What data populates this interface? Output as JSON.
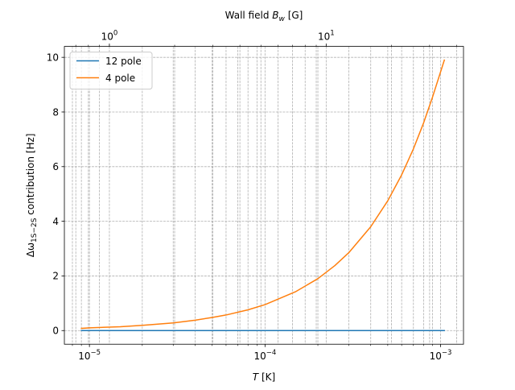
{
  "chart_data": {
    "type": "line",
    "xlabel": "T [K]",
    "ylabel": "Δω1S−2S contribution [Hz]",
    "top_xlabel": "Wall field B_w [G]",
    "xscale": "log",
    "xlim": [
      7.2e-06,
      0.00135
    ],
    "ylim": [
      -0.5,
      10.4
    ],
    "top_xlim": [
      0.62,
      43
    ],
    "grid": true,
    "legend_position": "upper-left",
    "x_ticks": [
      {
        "value": 1e-05,
        "base": "10",
        "exp": "−5"
      },
      {
        "value": 0.0001,
        "base": "10",
        "exp": "−4"
      },
      {
        "value": 0.001,
        "base": "10",
        "exp": "−3"
      }
    ],
    "top_ticks": [
      {
        "value": 1,
        "base": "10",
        "exp": "0"
      },
      {
        "value": 10,
        "base": "10",
        "exp": "1"
      }
    ],
    "y_ticks": [
      "0",
      "2",
      "4",
      "6",
      "8",
      "10"
    ],
    "series": [
      {
        "name": "12 pole",
        "color": "#1f77b4",
        "x": [
          9e-06,
          1.5e-05,
          3e-05,
          6e-05,
          0.0001,
          0.0002,
          0.0004,
          0.0006,
          0.0008,
          0.00105
        ],
        "y": [
          0.0,
          0.0,
          0.0,
          0.0,
          0.0,
          0.0,
          0.0,
          0.0,
          0.0,
          0.0
        ]
      },
      {
        "name": "4 pole",
        "color": "#ff7f0e",
        "x": [
          9e-06,
          1e-05,
          1.5e-05,
          2e-05,
          3e-05,
          4e-05,
          5e-05,
          6e-05,
          8e-05,
          0.0001,
          0.00015,
          0.0002,
          0.00025,
          0.0003,
          0.0004,
          0.0005,
          0.0006,
          0.0007,
          0.0008,
          0.0009,
          0.00105
        ],
        "y": [
          0.08,
          0.1,
          0.14,
          0.19,
          0.28,
          0.38,
          0.48,
          0.57,
          0.76,
          0.95,
          1.43,
          1.9,
          2.38,
          2.85,
          3.8,
          4.75,
          5.7,
          6.65,
          7.6,
          8.55,
          9.9
        ]
      }
    ]
  },
  "legend": {
    "items": [
      "12 pole",
      "4 pole"
    ]
  },
  "labels": {
    "x_axis_var": "T",
    "x_axis_unit": " [K]",
    "top_axis_text": "Wall field ",
    "top_axis_var": "B",
    "top_axis_sub": "w",
    "top_axis_unit": " [G]",
    "y_axis_pre": "Δω",
    "y_axis_sub": "1S−2S",
    "y_axis_post": " contribution [Hz]"
  }
}
